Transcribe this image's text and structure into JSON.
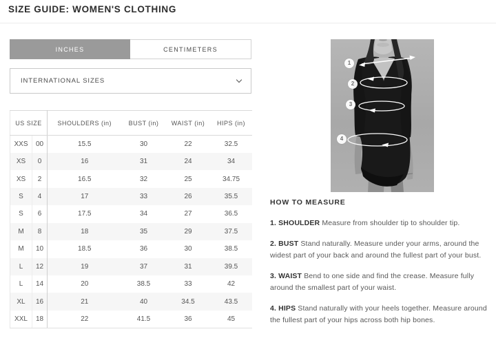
{
  "page": {
    "title": "SIZE GUIDE: WOMEN'S CLOTHING"
  },
  "unit_tabs": {
    "items": [
      {
        "label": "INCHES",
        "active": true
      },
      {
        "label": "CENTIMETERS",
        "active": false
      }
    ]
  },
  "region_dropdown": {
    "selected": "INTERNATIONAL SIZES"
  },
  "size_table": {
    "columns": [
      "US SIZE",
      "SHOULDERS (in)",
      "BUST (in)",
      "WAIST (in)",
      "HIPS (in)"
    ],
    "rows": [
      [
        "XXS",
        "00",
        "15.5",
        "30",
        "22",
        "32.5"
      ],
      [
        "XS",
        "0",
        "16",
        "31",
        "24",
        "34"
      ],
      [
        "XS",
        "2",
        "16.5",
        "32",
        "25",
        "34.75"
      ],
      [
        "S",
        "4",
        "17",
        "33",
        "26",
        "35.5"
      ],
      [
        "S",
        "6",
        "17.5",
        "34",
        "27",
        "36.5"
      ],
      [
        "M",
        "8",
        "18",
        "35",
        "29",
        "37.5"
      ],
      [
        "M",
        "10",
        "18.5",
        "36",
        "30",
        "38.5"
      ],
      [
        "L",
        "12",
        "19",
        "37",
        "31",
        "39.5"
      ],
      [
        "L",
        "14",
        "20",
        "38.5",
        "33",
        "42"
      ],
      [
        "XL",
        "16",
        "21",
        "40",
        "34.5",
        "43.5"
      ],
      [
        "XXL",
        "18",
        "22",
        "41.5",
        "36",
        "45"
      ]
    ]
  },
  "figure": {
    "markers": [
      "1",
      "2",
      "3",
      "4"
    ]
  },
  "how_to_measure": {
    "heading": "HOW TO MEASURE",
    "steps": [
      {
        "label": "1. SHOULDER",
        "text": "Measure from shoulder tip to shoulder tip."
      },
      {
        "label": "2. BUST",
        "text": "Stand naturally. Measure under your arms, around the widest part of your back and around the fullest part of your bust."
      },
      {
        "label": "3. WAIST",
        "text": "Bend to one side and find the crease. Measure fully around the smallest part of your waist."
      },
      {
        "label": "4. HIPS",
        "text": "Stand naturally with your heels together. Measure around the fullest part of your hips across both hip bones."
      }
    ]
  },
  "colors": {
    "active_tab_bg": "#9a9a9a",
    "active_tab_text": "#ffffff",
    "row_stripe": "#f6f6f6",
    "table_border": "#d9d9d9",
    "photo_background": "#adadad",
    "dress": "#181818",
    "text_primary": "#2d2d2d",
    "text_secondary": "#555555"
  }
}
